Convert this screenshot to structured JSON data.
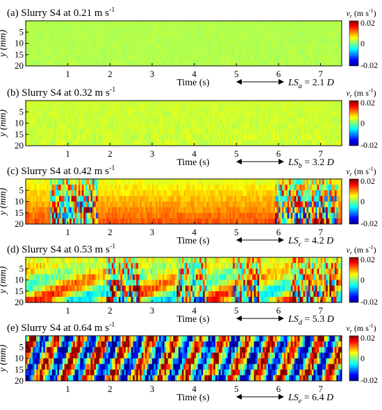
{
  "colors": {
    "jet": [
      "#00008f",
      "#0000ff",
      "#0080ff",
      "#00ffff",
      "#80ff80",
      "#ffff00",
      "#ff8000",
      "#ff0000",
      "#800000"
    ],
    "background_field": "#5ee05e",
    "text": "#000000"
  },
  "chart_data": [
    {
      "type": "heatmap",
      "panel": "(a)",
      "title": "(a) Slurry S4 at 0.21 m s",
      "title_sup": "-1",
      "xlabel": "Time (s)",
      "ylabel": "y (mm)",
      "xlim": [
        0,
        7.5
      ],
      "ylim": [
        20,
        0
      ],
      "xticks": [
        1,
        2,
        3,
        4,
        5,
        6,
        7
      ],
      "yticks": [
        5,
        10,
        15,
        20
      ],
      "colorbar": {
        "label": "v",
        "label_sub": "r",
        "unit": " (m s",
        "unit_sup": "-1",
        "unit_end": ")",
        "min": -0.02,
        "max": 0.02,
        "ticks": [
          "0.02",
          "0",
          "-0.02"
        ]
      },
      "scale_label": {
        "base": "LS",
        "sub": "a",
        "text": " = 2.1 ",
        "unit": "D"
      },
      "field": {
        "mean": 0.002,
        "turbulence": 0.0008,
        "bursts": []
      }
    },
    {
      "type": "heatmap",
      "panel": "(b)",
      "title": "(b) Slurry S4 at 0.32 m s",
      "title_sup": "-1",
      "xlabel": "Time (s)",
      "ylabel": "y (mm)",
      "xlim": [
        0,
        7.5
      ],
      "ylim": [
        20,
        0
      ],
      "xticks": [
        1,
        2,
        3,
        4,
        5,
        6,
        7
      ],
      "yticks": [
        5,
        10,
        15,
        20
      ],
      "colorbar": {
        "label": "v",
        "label_sub": "r",
        "unit": " (m s",
        "unit_sup": "-1",
        "unit_end": ")",
        "min": -0.02,
        "max": 0.02,
        "ticks": [
          "0.02",
          "0",
          "-0.02"
        ]
      },
      "scale_label": {
        "base": "LS",
        "sub": "b",
        "text": " = 3.2 ",
        "unit": "D"
      },
      "field": {
        "mean": 0.003,
        "turbulence": 0.0015,
        "bursts": []
      }
    },
    {
      "type": "heatmap",
      "panel": "(c)",
      "title": "(c) Slurry S4 at 0.42 m s",
      "title_sup": "-1",
      "xlabel": "Time (s)",
      "ylabel": "y (mm)",
      "xlim": [
        0,
        7.5
      ],
      "ylim": [
        20,
        0
      ],
      "xticks": [
        1,
        2,
        3,
        4,
        5,
        6,
        7
      ],
      "yticks": [
        5,
        10,
        15,
        20
      ],
      "colorbar": {
        "label": "v",
        "label_sub": "r",
        "unit": " (m s",
        "unit_sup": "-1",
        "unit_end": ")",
        "min": -0.02,
        "max": 0.02,
        "ticks": [
          "0.02",
          "0",
          "-0.02"
        ]
      },
      "scale_label": {
        "base": "LS",
        "sub": "c",
        "text": " = 4.2 ",
        "unit": "D"
      },
      "field": {
        "mean": 0.004,
        "turbulence": 0.004,
        "bursts": [
          [
            0.6,
            1.7
          ],
          [
            5.9,
            7.4
          ]
        ]
      }
    },
    {
      "type": "heatmap",
      "panel": "(d)",
      "title": "(d) Slurry S4 at 0.53 m s",
      "title_sup": "-1",
      "xlabel": "Time (s)",
      "ylabel": "y (mm)",
      "xlim": [
        0,
        7.5
      ],
      "ylim": [
        20,
        0
      ],
      "xticks": [
        1,
        2,
        3,
        4,
        5,
        6,
        7
      ],
      "yticks": [
        5,
        10,
        15,
        20
      ],
      "colorbar": {
        "label": "v",
        "label_sub": "r",
        "unit": " (m s",
        "unit_sup": "-1",
        "unit_end": ")",
        "min": -0.02,
        "max": 0.02,
        "ticks": [
          "0.02",
          "0",
          "-0.02"
        ]
      },
      "scale_label": {
        "base": "LS",
        "sub": "d",
        "text": " = 5.3 ",
        "unit": "D"
      },
      "field": {
        "mean": 0.005,
        "turbulence": 0.012,
        "bursts": [
          [
            1.9,
            2.7
          ],
          [
            3.6,
            4.3
          ],
          [
            4.9,
            5.6
          ],
          [
            6.3,
            7.4
          ]
        ]
      }
    },
    {
      "type": "heatmap",
      "panel": "(e)",
      "title": "(e) Slurry S4 at 0.64 m s",
      "title_sup": "-1",
      "xlabel": "Time (s)",
      "ylabel": "y (mm)",
      "xlim": [
        0,
        7.5
      ],
      "ylim": [
        20,
        0
      ],
      "xticks": [
        1,
        2,
        3,
        4,
        5,
        6,
        7
      ],
      "yticks": [
        5,
        10,
        15,
        20
      ],
      "colorbar": {
        "label": "v",
        "label_sub": "r",
        "unit": " (m s",
        "unit_sup": "-1",
        "unit_end": ")",
        "min": -0.02,
        "max": 0.02,
        "ticks": [
          "0.02",
          "0",
          "-0.02"
        ]
      },
      "scale_label": {
        "base": "LS",
        "sub": "e",
        "text": " = 6.4 ",
        "unit": "D"
      },
      "field": {
        "mean": 0.0,
        "turbulence": 0.02,
        "bursts": []
      }
    }
  ]
}
